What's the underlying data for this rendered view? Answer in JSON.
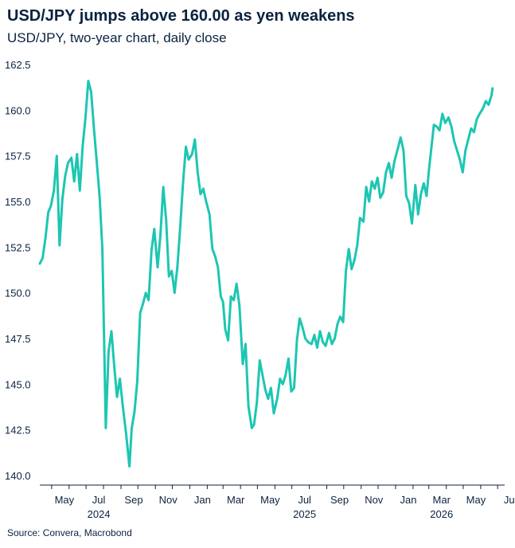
{
  "header": {
    "title": "USD/JPY jumps above 160.00 as yen weakens",
    "subtitle": "USD/JPY, two-year chart, daily close"
  },
  "footer": {
    "source": "Source: Convera, Macrobond"
  },
  "colors": {
    "line": "#1cc6b2",
    "text": "#0b2240",
    "axis": "#0b2240"
  },
  "chart_data": {
    "type": "line",
    "title": "USD/JPY jumps above 160.00 as yen weakens",
    "subtitle": "USD/JPY, two-year chart, daily close",
    "xlabel": "",
    "ylabel": "",
    "ylim": [
      140.0,
      162.5
    ],
    "xlim": [
      "2024-04-10",
      "2026-07-05"
    ],
    "yticks": [
      140.0,
      142.5,
      145.0,
      147.5,
      150.0,
      152.5,
      155.0,
      157.5,
      160.0,
      162.5
    ],
    "ytick_labels": [
      "140.0",
      "142.5",
      "145.0",
      "147.5",
      "150.0",
      "152.5",
      "155.0",
      "157.5",
      "160.0",
      "162.5"
    ],
    "xticks": [
      {
        "date": "2024-05-01",
        "label": "May"
      },
      {
        "date": "2024-07-01",
        "label": "Jul"
      },
      {
        "date": "2024-09-01",
        "label": "Sep"
      },
      {
        "date": "2024-11-01",
        "label": "Nov"
      },
      {
        "date": "2025-01-01",
        "label": "Jan"
      },
      {
        "date": "2025-03-01",
        "label": "Mar"
      },
      {
        "date": "2025-05-01",
        "label": "May"
      },
      {
        "date": "2025-07-01",
        "label": "Jul"
      },
      {
        "date": "2025-09-01",
        "label": "Sep"
      },
      {
        "date": "2025-11-01",
        "label": "Nov"
      },
      {
        "date": "2026-01-01",
        "label": "Jan"
      },
      {
        "date": "2026-03-01",
        "label": "Mar"
      },
      {
        "date": "2026-05-01",
        "label": "May"
      },
      {
        "date": "2026-07-01",
        "label": "Jul"
      }
    ],
    "year_labels": [
      {
        "date": "2024-07-01",
        "label": "2024"
      },
      {
        "date": "2025-07-01",
        "label": "2025"
      },
      {
        "date": "2026-03-01",
        "label": "2026"
      }
    ],
    "grid": false,
    "legend": "none",
    "series": [
      {
        "x": [
          "2024-04-10",
          "2024-04-15",
          "2024-04-20",
          "2024-04-25",
          "2024-04-30",
          "2024-05-05",
          "2024-05-10",
          "2024-05-15",
          "2024-05-20",
          "2024-05-25",
          "2024-05-30",
          "2024-06-05",
          "2024-06-10",
          "2024-06-15",
          "2024-06-20",
          "2024-06-25",
          "2024-06-30",
          "2024-07-05",
          "2024-07-10",
          "2024-07-15",
          "2024-07-20",
          "2024-07-25",
          "2024-07-30",
          "2024-08-05",
          "2024-08-10",
          "2024-08-15",
          "2024-08-20",
          "2024-08-25",
          "2024-08-30",
          "2024-09-05",
          "2024-09-10",
          "2024-09-16",
          "2024-09-20",
          "2024-09-25",
          "2024-09-30",
          "2024-10-05",
          "2024-10-10",
          "2024-10-15",
          "2024-10-20",
          "2024-10-25",
          "2024-10-30",
          "2024-11-05",
          "2024-11-10",
          "2024-11-15",
          "2024-11-20",
          "2024-11-25",
          "2024-11-30",
          "2024-12-05",
          "2024-12-10",
          "2024-12-15",
          "2024-12-20",
          "2024-12-25",
          "2024-12-30",
          "2025-01-05",
          "2025-01-10",
          "2025-01-15",
          "2025-01-20",
          "2025-01-25",
          "2025-01-30",
          "2025-02-05",
          "2025-02-10",
          "2025-02-15",
          "2025-02-20",
          "2025-02-25",
          "2025-03-01",
          "2025-03-05",
          "2025-03-10",
          "2025-03-15",
          "2025-03-20",
          "2025-03-25",
          "2025-03-30",
          "2025-04-05",
          "2025-04-10",
          "2025-04-15",
          "2025-04-21",
          "2025-04-25",
          "2025-04-30",
          "2025-05-05",
          "2025-05-10",
          "2025-05-15",
          "2025-05-20",
          "2025-05-25",
          "2025-05-30",
          "2025-06-05",
          "2025-06-10",
          "2025-06-15",
          "2025-06-20",
          "2025-06-25",
          "2025-06-30",
          "2025-07-05",
          "2025-07-10",
          "2025-07-15",
          "2025-07-20",
          "2025-07-25",
          "2025-07-30",
          "2025-08-05",
          "2025-08-10",
          "2025-08-15",
          "2025-08-20",
          "2025-08-25",
          "2025-08-30",
          "2025-09-05",
          "2025-09-10",
          "2025-09-15",
          "2025-09-20",
          "2025-09-25",
          "2025-09-30",
          "2025-10-05",
          "2025-10-10",
          "2025-10-15",
          "2025-10-20",
          "2025-10-25",
          "2025-10-30",
          "2025-11-05",
          "2025-11-10",
          "2025-11-15",
          "2025-11-20",
          "2025-11-25",
          "2025-11-30",
          "2025-12-05",
          "2025-12-10",
          "2025-12-15",
          "2025-12-20",
          "2025-12-25",
          "2025-12-30",
          "2026-01-05",
          "2026-01-10",
          "2026-01-15",
          "2026-01-20",
          "2026-01-25",
          "2026-01-30",
          "2026-02-05",
          "2026-02-10",
          "2026-02-15",
          "2026-02-20",
          "2026-02-25",
          "2026-03-01",
          "2026-03-05",
          "2026-03-10",
          "2026-03-15",
          "2026-03-20",
          "2026-03-25",
          "2026-03-30",
          "2026-04-05",
          "2026-04-10",
          "2026-04-15",
          "2026-04-20",
          "2026-04-25",
          "2026-04-30",
          "2026-05-05",
          "2026-05-10",
          "2026-05-15",
          "2026-05-20",
          "2026-05-25",
          "2026-05-30",
          "2026-06-05",
          "2026-06-10",
          "2026-06-15",
          "2026-06-18",
          "2026-06-20",
          "2026-06-22"
        ],
        "values": [
          151.6,
          151.9,
          153.0,
          154.4,
          154.8,
          155.6,
          157.5,
          152.6,
          155.1,
          156.4,
          157.1,
          157.4,
          156.1,
          157.6,
          155.6,
          158.0,
          159.6,
          161.6,
          161.0,
          159.0,
          157.2,
          155.3,
          152.4,
          142.6,
          146.8,
          147.9,
          146.0,
          144.3,
          145.3,
          143.6,
          142.3,
          140.5,
          142.6,
          143.5,
          145.2,
          148.9,
          149.4,
          150.0,
          149.6,
          152.3,
          153.5,
          151.4,
          153.2,
          155.8,
          154.0,
          150.9,
          151.2,
          150.0,
          151.4,
          153.6,
          156.0,
          158.0,
          157.3,
          157.6,
          158.4,
          156.6,
          155.4,
          155.7,
          155.0,
          154.3,
          152.4,
          152.0,
          151.4,
          149.8,
          149.5,
          148.0,
          147.4,
          149.8,
          149.6,
          150.5,
          149.3,
          146.1,
          147.2,
          143.8,
          142.6,
          142.8,
          144.0,
          146.3,
          145.5,
          144.7,
          144.2,
          144.8,
          143.4,
          144.2,
          145.3,
          145.0,
          145.5,
          146.4,
          144.6,
          144.8,
          147.4,
          148.6,
          148.1,
          147.5,
          147.3,
          147.2,
          147.7,
          147.0,
          147.9,
          147.3,
          147.1,
          147.8,
          147.2,
          147.5,
          148.3,
          148.7,
          148.4,
          151.2,
          152.4,
          151.3,
          151.8,
          152.6,
          154.1,
          153.9,
          155.8,
          155.0,
          156.1,
          155.7,
          156.3,
          155.2,
          155.5,
          156.6,
          157.1,
          156.3,
          157.2,
          157.9,
          158.5,
          157.8,
          155.3,
          154.9,
          153.8,
          155.9,
          154.3,
          155.4,
          156.0,
          155.3,
          156.7,
          157.8,
          159.2,
          159.1,
          158.9,
          159.8,
          159.3,
          159.6,
          159.1,
          158.3,
          157.8,
          157.3,
          156.6,
          157.8,
          158.4,
          159.0,
          158.8,
          159.5,
          159.8,
          160.1,
          160.5,
          160.3,
          160.6,
          160.8,
          161.2
        ]
      }
    ]
  }
}
